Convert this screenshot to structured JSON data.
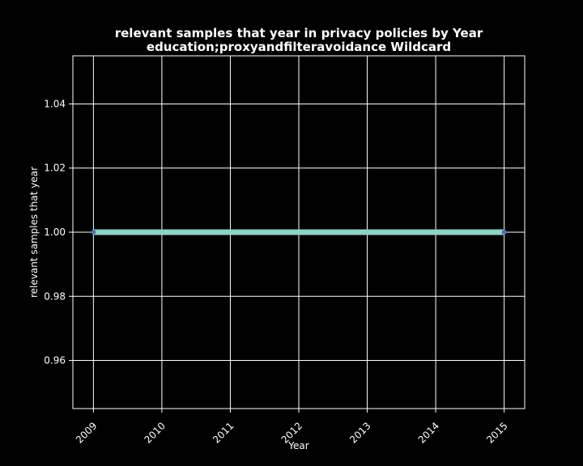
{
  "chart_data": {
    "type": "line",
    "title_line1": "relevant samples that year in privacy policies by Year",
    "title_line2": "education;proxyandfilteravoidance Wildcard",
    "xlabel": "Year",
    "ylabel": "relevant samples that year",
    "x_ticks": [
      "2009",
      "2010",
      "2011",
      "2012",
      "2013",
      "2014",
      "2015"
    ],
    "y_ticks": [
      "0.96",
      "0.98",
      "1.00",
      "1.02",
      "1.04"
    ],
    "xlim": [
      2008.7,
      2015.3
    ],
    "ylim": [
      0.945,
      1.055
    ],
    "grid": true,
    "series": [
      {
        "x": [
          2009,
          2015
        ],
        "y": [
          1.0,
          1.0
        ]
      }
    ],
    "colors": {
      "background": "#000000",
      "axes": "#ffffff",
      "grid": "#ffffff",
      "line": "#8dd3c7",
      "marker": "#4c72b0"
    }
  }
}
